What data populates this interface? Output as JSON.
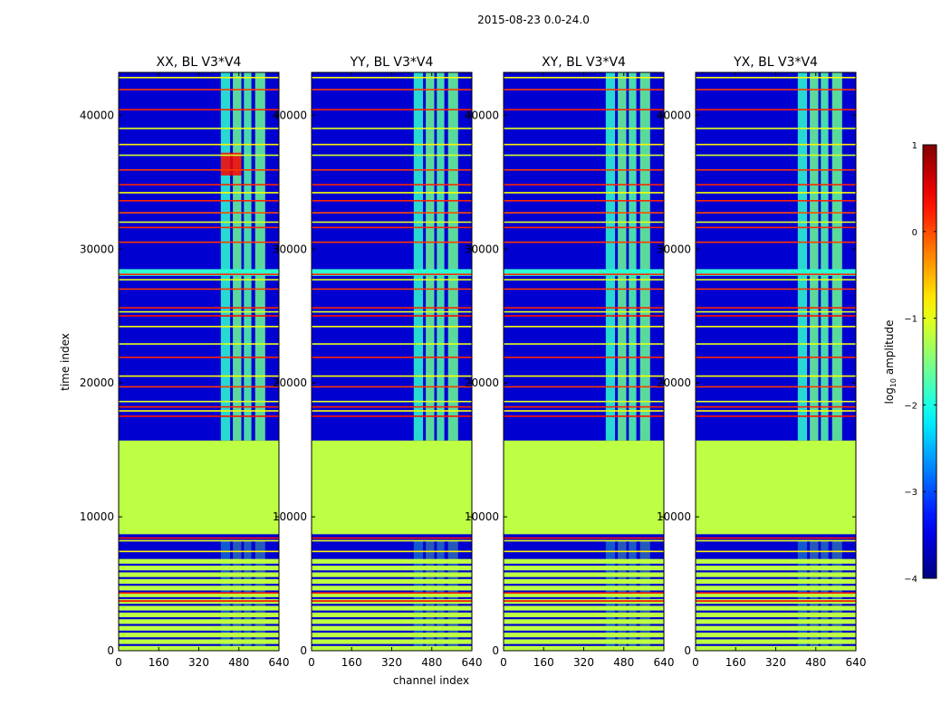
{
  "chart_data": {
    "type": "heatmap",
    "suptitle": "2015-08-23 0.0-24.0",
    "xlabel": "channel index",
    "ylabel": "time index",
    "xlim": [
      0,
      640
    ],
    "ylim": [
      0,
      43200
    ],
    "x_ticks": [
      0,
      160,
      320,
      480,
      640
    ],
    "y_ticks": [
      0,
      10000,
      20000,
      30000,
      40000
    ],
    "panels": [
      {
        "title": "XX, BL V3*V4",
        "hot_spot": true
      },
      {
        "title": "YY, BL V3*V4",
        "hot_spot": false
      },
      {
        "title": "XY, BL V3*V4",
        "hot_spot": false
      },
      {
        "title": "YX, BL V3*V4",
        "hot_spot": false
      }
    ],
    "colorbar": {
      "label_prefix": "log",
      "label_sub": "10",
      "label_suffix": " amplitude",
      "range": [
        -4,
        1
      ],
      "ticks": [
        1,
        0,
        -1,
        -2,
        -3,
        -4
      ],
      "tick_labels": [
        "1",
        "0",
        "−1",
        "−2",
        "−3",
        "−4"
      ],
      "colormap": "jet"
    },
    "background_level": -3.6,
    "flagged_time_blocks": [
      {
        "t0": 8700,
        "t1": 15700,
        "level": -1.2
      },
      {
        "t0": 6600,
        "t1": 6800,
        "level": -1.2
      }
    ],
    "rfi_bands": [
      {
        "c0": 408,
        "c1": 445,
        "level": -1.9
      },
      {
        "c0": 456,
        "c1": 490,
        "level": -1.6
      },
      {
        "c0": 500,
        "c1": 530,
        "level": -1.7
      },
      {
        "c0": 545,
        "c1": 585,
        "level": -1.6
      }
    ],
    "horizontal_lines": [
      {
        "t": 41900,
        "level": 0.1
      },
      {
        "t": 42800,
        "level": -0.9
      },
      {
        "t": 40400,
        "level": 0.2
      },
      {
        "t": 39000,
        "level": -1.0
      },
      {
        "t": 37800,
        "level": -0.8
      },
      {
        "t": 37000,
        "level": -1.1
      },
      {
        "t": 35900,
        "level": 0.1
      },
      {
        "t": 34800,
        "level": 0.2
      },
      {
        "t": 34200,
        "level": -0.9
      },
      {
        "t": 33600,
        "level": 0.2
      },
      {
        "t": 32700,
        "level": 0.0
      },
      {
        "t": 32000,
        "level": -1.0
      },
      {
        "t": 31600,
        "level": 0.2
      },
      {
        "t": 30500,
        "level": 0.1
      },
      {
        "t": 28100,
        "level": 0.2
      },
      {
        "t": 27700,
        "level": -1.0
      },
      {
        "t": 27000,
        "level": 0.1
      },
      {
        "t": 25600,
        "level": 0.2
      },
      {
        "t": 25300,
        "level": -1.0
      },
      {
        "t": 25000,
        "level": 0.3
      },
      {
        "t": 24200,
        "level": -0.9
      },
      {
        "t": 22900,
        "level": -1.0
      },
      {
        "t": 21900,
        "level": 0.2
      },
      {
        "t": 20500,
        "level": -0.9
      },
      {
        "t": 19700,
        "level": 0.1
      },
      {
        "t": 18600,
        "level": -1.0
      },
      {
        "t": 18200,
        "level": 0.2
      },
      {
        "t": 17900,
        "level": -0.9
      },
      {
        "t": 17500,
        "level": 0.3
      },
      {
        "t": 8400,
        "level": 0.3
      },
      {
        "t": 8200,
        "level": -1.0
      },
      {
        "t": 7400,
        "level": -0.8
      },
      {
        "t": 4300,
        "level": 0.2
      },
      {
        "t": 3700,
        "level": 0.4
      }
    ],
    "lower_striped_region": {
      "t0": 0,
      "t1": 6600,
      "level": -1.2
    },
    "wide_flag_band": {
      "t0": 28000,
      "t1": 28500,
      "level": -1.9
    }
  }
}
